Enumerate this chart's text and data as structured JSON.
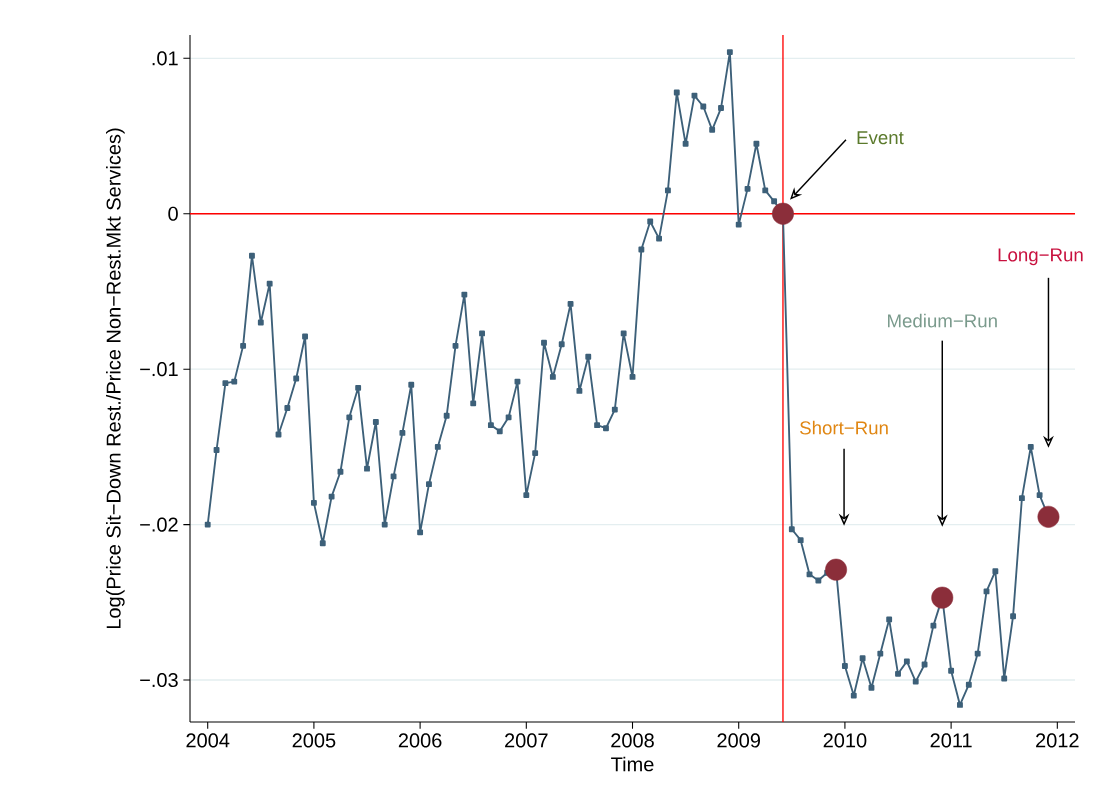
{
  "chart_data": {
    "type": "line",
    "xlabel": "Time",
    "ylabel": "Log(Price Sit−Down Rest./Price Non−Rest.Mkt Services)",
    "x": [
      "2004-01",
      "2004-02",
      "2004-03",
      "2004-04",
      "2004-05",
      "2004-06",
      "2004-07",
      "2004-08",
      "2004-09",
      "2004-10",
      "2004-11",
      "2004-12",
      "2005-01",
      "2005-02",
      "2005-03",
      "2005-04",
      "2005-05",
      "2005-06",
      "2005-07",
      "2005-08",
      "2005-09",
      "2005-10",
      "2005-11",
      "2005-12",
      "2006-01",
      "2006-02",
      "2006-03",
      "2006-04",
      "2006-05",
      "2006-06",
      "2006-07",
      "2006-08",
      "2006-09",
      "2006-10",
      "2006-11",
      "2006-12",
      "2007-01",
      "2007-02",
      "2007-03",
      "2007-04",
      "2007-05",
      "2007-06",
      "2007-07",
      "2007-08",
      "2007-09",
      "2007-10",
      "2007-11",
      "2007-12",
      "2008-01",
      "2008-02",
      "2008-03",
      "2008-04",
      "2008-05",
      "2008-06",
      "2008-07",
      "2008-08",
      "2008-09",
      "2008-10",
      "2008-11",
      "2008-12",
      "2009-01",
      "2009-02",
      "2009-03",
      "2009-04",
      "2009-05",
      "2009-06",
      "2009-07",
      "2009-08",
      "2009-09",
      "2009-10",
      "2009-11",
      "2009-12",
      "2010-01",
      "2010-02",
      "2010-03",
      "2010-04",
      "2010-05",
      "2010-06",
      "2010-07",
      "2010-08",
      "2010-09",
      "2010-10",
      "2010-11",
      "2010-12",
      "2011-01",
      "2011-02",
      "2011-03",
      "2011-04",
      "2011-05",
      "2011-06",
      "2011-07",
      "2011-08",
      "2011-09",
      "2011-10",
      "2011-11",
      "2011-12"
    ],
    "series": [
      {
        "color": "#3d6079",
        "marker": "square",
        "values": [
          -0.02,
          -0.0152,
          -0.0109,
          -0.0108,
          -0.0085,
          -0.0027,
          -0.007,
          -0.0045,
          -0.0142,
          -0.0125,
          -0.0106,
          -0.0079,
          -0.0186,
          -0.0212,
          -0.0182,
          -0.0166,
          -0.0131,
          -0.0112,
          -0.0164,
          -0.0134,
          -0.02,
          -0.0169,
          -0.0141,
          -0.011,
          -0.0205,
          -0.0174,
          -0.015,
          -0.013,
          -0.0085,
          -0.0052,
          -0.0122,
          -0.0077,
          -0.0136,
          -0.014,
          -0.0131,
          -0.0108,
          -0.0181,
          -0.0154,
          -0.0083,
          -0.0105,
          -0.0084,
          -0.0058,
          -0.0114,
          -0.0092,
          -0.0136,
          -0.0138,
          -0.0126,
          -0.0077,
          -0.0105,
          -0.0023,
          -0.0005,
          -0.0016,
          0.0015,
          0.0078,
          0.0045,
          0.0076,
          0.0069,
          0.0054,
          0.0068,
          0.0104,
          -0.0007,
          0.0016,
          0.0045,
          0.0015,
          0.0008,
          0.0,
          -0.0203,
          -0.021,
          -0.0232,
          -0.0236,
          -0.0231,
          -0.0229,
          -0.0291,
          -0.031,
          -0.0286,
          -0.0305,
          -0.0283,
          -0.0261,
          -0.0296,
          -0.0288,
          -0.0301,
          -0.029,
          -0.0265,
          -0.0247,
          -0.0294,
          -0.0316,
          -0.0303,
          -0.0283,
          -0.0243,
          -0.023,
          -0.0299,
          -0.0259,
          -0.0183,
          -0.015,
          -0.0181,
          -0.0195
        ]
      },
      {
        "type": "scatter",
        "color": "#8b2e3a",
        "marker": "circle",
        "x": [
          "2009-06",
          "2009-12",
          "2010-12",
          "2011-12"
        ],
        "values": [
          0.0,
          -0.0229,
          -0.0247,
          -0.0195
        ]
      }
    ],
    "xlim": [
      "2003-11",
      "2012-03"
    ],
    "xticks": [
      "2004",
      "2005",
      "2006",
      "2007",
      "2008",
      "2009",
      "2010",
      "2011",
      "2012"
    ],
    "ylim": [
      -0.0327,
      0.0115
    ],
    "yticks": [
      {
        "value": -0.03,
        "label": "−.03"
      },
      {
        "value": -0.02,
        "label": "−.02"
      },
      {
        "value": -0.01,
        "label": "−.01"
      },
      0,
      {
        "value": 0.01,
        "label": ".01"
      }
    ],
    "grid": "y",
    "ref_lines": [
      {
        "axis": "y",
        "value": 0,
        "color": "#ff0000"
      },
      {
        "axis": "x",
        "value": "2009-06",
        "color": "#ff0000"
      }
    ],
    "annotations": [
      "Event",
      "Short−Run",
      "Medium−Run",
      "Long−Run"
    ]
  }
}
